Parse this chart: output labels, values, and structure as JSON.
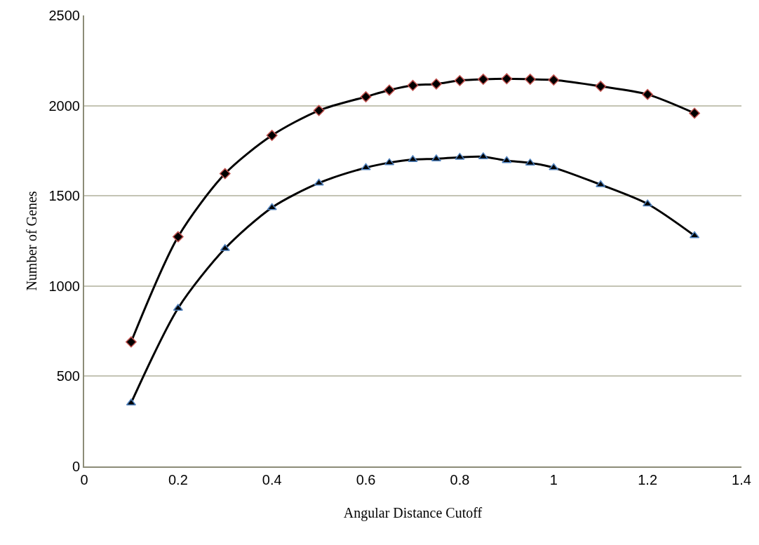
{
  "chart_data": {
    "type": "line",
    "xlabel": "Angular Distance Cutoff",
    "ylabel": "Number of Genes",
    "x": [
      0.1,
      0.2,
      0.3,
      0.4,
      0.5,
      0.6,
      0.65,
      0.7,
      0.75,
      0.8,
      0.85,
      0.9,
      0.95,
      1.0,
      1.1,
      1.2,
      1.3
    ],
    "series": [
      {
        "color": "#000000",
        "marker": "diamond",
        "values": [
          690,
          1273,
          1623,
          1835,
          1973,
          2049,
          2086,
          2112,
          2120,
          2139,
          2146,
          2149,
          2146,
          2142,
          2107,
          2062,
          1958
        ]
      },
      {
        "color": "#000000",
        "marker": "triangle",
        "values": [
          352,
          877,
          1208,
          1435,
          1571,
          1656,
          1684,
          1701,
          1705,
          1714,
          1717,
          1695,
          1682,
          1656,
          1562,
          1455,
          1279
        ]
      }
    ],
    "xlim": [
      0,
      1.4
    ],
    "xticks": [
      0,
      0.2,
      0.4,
      0.6,
      0.8,
      1,
      1.2,
      1.4
    ],
    "ylim": [
      0,
      2500
    ],
    "yticks": [
      0,
      500,
      1000,
      1500,
      2000,
      2500
    ],
    "grid": "y",
    "line_style": "solid"
  }
}
